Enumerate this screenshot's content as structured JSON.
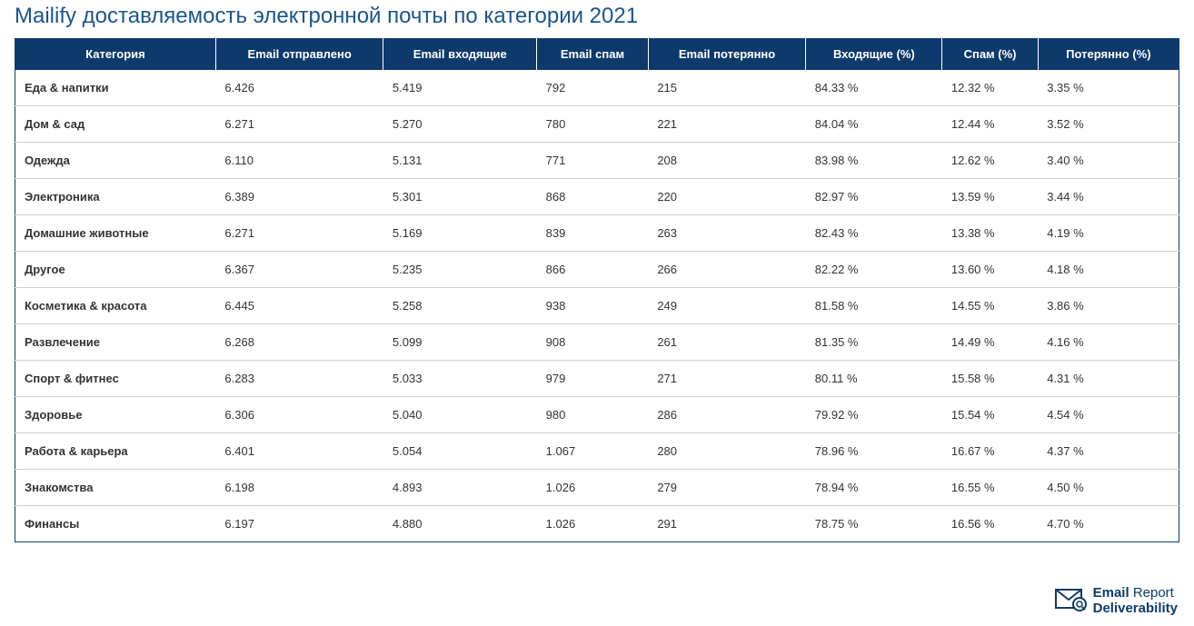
{
  "title": "Mailify доставляемость электронной почты по категории 2021",
  "table": {
    "type": "table",
    "header_bg": "#0e3a6b",
    "header_text_color": "#ffffff",
    "border_color": "#0e3a6b",
    "row_border_color": "#d0d0d0",
    "font_family": "Arial",
    "font_size": 13,
    "columns": [
      "Категория",
      "Email отправлено",
      "Email входящие",
      "Email спам",
      "Email потерянно",
      "Входящие (%)",
      "Спам (%)",
      "Потерянно (%)"
    ],
    "rows": [
      [
        "Еда & напитки",
        "6.426",
        "5.419",
        "792",
        "215",
        "84.33 %",
        "12.32 %",
        "3.35 %"
      ],
      [
        "Дом & сад",
        "6.271",
        "5.270",
        "780",
        "221",
        "84.04 %",
        "12.44 %",
        "3.52 %"
      ],
      [
        "Одежда",
        "6.110",
        "5.131",
        "771",
        "208",
        "83.98 %",
        "12.62 %",
        "3.40 %"
      ],
      [
        "Электроника",
        "6.389",
        "5.301",
        "868",
        "220",
        "82.97 %",
        "13.59 %",
        "3.44 %"
      ],
      [
        "Домашние животные",
        "6.271",
        "5.169",
        "839",
        "263",
        "82.43 %",
        "13.38 %",
        "4.19 %"
      ],
      [
        "Другое",
        "6.367",
        "5.235",
        "866",
        "266",
        "82.22 %",
        "13.60 %",
        "4.18 %"
      ],
      [
        "Косметика & красота",
        "6.445",
        "5.258",
        "938",
        "249",
        "81.58 %",
        "14.55 %",
        "3.86 %"
      ],
      [
        "Развлечение",
        "6.268",
        "5.099",
        "908",
        "261",
        "81.35 %",
        "14.49 %",
        "4.16 %"
      ],
      [
        "Спорт & фитнес",
        "6.283",
        "5.033",
        "979",
        "271",
        "80.11 %",
        "15.58 %",
        "4.31 %"
      ],
      [
        "Здоровье",
        "6.306",
        "5.040",
        "980",
        "286",
        "79.92 %",
        "15.54 %",
        "4.54 %"
      ],
      [
        "Работа & карьера",
        "6.401",
        "5.054",
        "1.067",
        "280",
        "78.96 %",
        "16.67 %",
        "4.37 %"
      ],
      [
        "Знакомства",
        "6.198",
        "4.893",
        "1.026",
        "279",
        "78.94 %",
        "16.55 %",
        "4.50 %"
      ],
      [
        "Финансы",
        "6.197",
        "4.880",
        "1.026",
        "291",
        "78.75 %",
        "16.56 %",
        "4.70 %"
      ]
    ]
  },
  "logo": {
    "line1_a": "Email",
    "line1_b": "Report",
    "line2": "Deliverability",
    "brand_color": "#0e3a6b"
  }
}
